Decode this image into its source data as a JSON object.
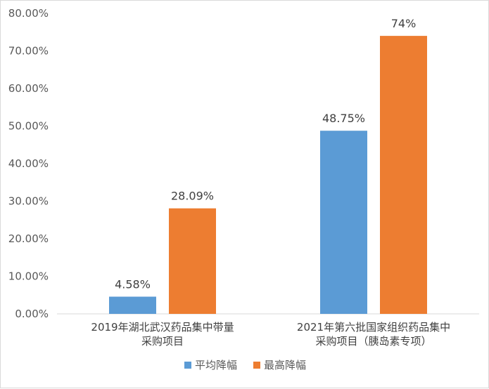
{
  "chart_data": {
    "type": "bar",
    "categories": [
      [
        "2019年湖北武汉药品集中带量",
        "采购项目"
      ],
      [
        "2021年第六批国家组织药品集中",
        "采购项目（胰岛素专项）"
      ]
    ],
    "series": [
      {
        "name": "平均降幅",
        "color": "#5b9bd5",
        "values": [
          4.58,
          48.75
        ],
        "labels": [
          "4.58%",
          "48.75%"
        ]
      },
      {
        "name": "最高降幅",
        "color": "#ed7d31",
        "values": [
          28.09,
          74
        ],
        "labels": [
          "28.09%",
          "74%"
        ]
      }
    ],
    "ylim": [
      0,
      80
    ],
    "yticks": [
      "0.00%",
      "10.00%",
      "20.00%",
      "30.00%",
      "40.00%",
      "50.00%",
      "60.00%",
      "70.00%",
      "80.00%"
    ],
    "grid": false,
    "legend_position": "bottom-center"
  }
}
